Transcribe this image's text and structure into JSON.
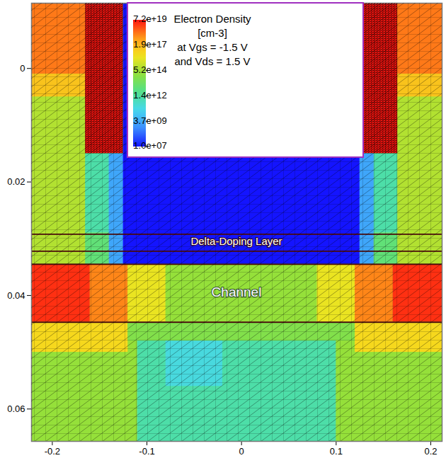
{
  "chart_data": {
    "type": "heatmap",
    "xlim": [
      -0.222,
      0.212
    ],
    "ylim": [
      -0.0115,
      0.0657
    ],
    "xticks": [
      -0.2,
      -0.1,
      0,
      0.1,
      0.2
    ],
    "yticks": [
      0,
      0.02,
      0.04,
      0.06
    ],
    "tick_labels": true,
    "colorbar": {
      "title": "Electron Density",
      "label_lines": [
        "[cm-3]",
        "at Vgs = -1.5 V",
        "and Vds = 1.5 V"
      ],
      "range": [
        10000000,
        72000000000000000000
      ],
      "log": true,
      "ticks": [
        {
          "value": 72000000000000000000,
          "label": "7.2e+19"
        },
        {
          "value": 190000000000000000,
          "label": "1.9e+17"
        },
        {
          "value": 520000000000000,
          "label": "5.2e+14"
        },
        {
          "value": 1400000000000,
          "label": "1.4e+12"
        },
        {
          "value": 3700000000,
          "label": "3.7e+09"
        },
        {
          "value": 10000000,
          "label": "1.0e+07"
        }
      ]
    },
    "annotations": [
      "Delta-Doping Layer",
      "Channel"
    ],
    "interfaces": [
      0.0292,
      0.0322,
      0.0345,
      0.0447
    ],
    "cells": [
      {
        "x": [
          -0.222,
          0.212
        ],
        "y": [
          -0.0115,
          0.0447
        ],
        "value": 1000000000000000.0
      },
      {
        "x": [
          -0.222,
          0.212
        ],
        "y": [
          0.0447,
          0.0657
        ],
        "value": 300000000000000.0
      },
      {
        "x": [
          -0.222,
          -0.165
        ],
        "y": [
          -0.0115,
          0.001
        ],
        "value": 3e+18
      },
      {
        "x": [
          -0.222,
          -0.165
        ],
        "y": [
          0.001,
          0.005
        ],
        "value": 1e+17
      },
      {
        "x": [
          0.165,
          0.212
        ],
        "y": [
          -0.0115,
          0.001
        ],
        "value": 3e+18
      },
      {
        "x": [
          0.165,
          0.212
        ],
        "y": [
          0.001,
          0.005
        ],
        "value": 1e+17
      },
      {
        "x": [
          -0.165,
          -0.125
        ],
        "y": [
          -0.0115,
          0.015
        ],
        "value": 7e+19
      },
      {
        "x": [
          0.125,
          0.165
        ],
        "y": [
          -0.0115,
          0.015
        ],
        "value": 7e+19
      },
      {
        "x": [
          -0.165,
          -0.13
        ],
        "y": [
          0.015,
          0.029
        ],
        "value": 1000000000000.0
      },
      {
        "x": [
          0.13,
          0.165
        ],
        "y": [
          0.015,
          0.029
        ],
        "value": 1000000000000.0
      },
      {
        "x": [
          -0.165,
          -0.14
        ],
        "y": [
          0.029,
          0.0345
        ],
        "value": 10000000000000.0
      },
      {
        "x": [
          0.14,
          0.165
        ],
        "y": [
          0.029,
          0.0345
        ],
        "value": 10000000000000.0
      },
      {
        "x": [
          -0.14,
          0.14
        ],
        "y": [
          0.015,
          0.0345
        ],
        "value": 3000000000.0
      },
      {
        "x": [
          -0.125,
          0.125
        ],
        "y": [
          -0.0115,
          0.0345
        ],
        "value": 10000000.0
      },
      {
        "x": [
          -0.222,
          -0.16
        ],
        "y": [
          0.0345,
          0.0447
        ],
        "value": 3e+19
      },
      {
        "x": [
          -0.16,
          -0.12
        ],
        "y": [
          0.0345,
          0.0447
        ],
        "value": 2e+18
      },
      {
        "x": [
          -0.12,
          -0.08
        ],
        "y": [
          0.0345,
          0.0447
        ],
        "value": 1e+16
      },
      {
        "x": [
          -0.08,
          0.08
        ],
        "y": [
          0.0345,
          0.0447
        ],
        "value": 300000000000000.0
      },
      {
        "x": [
          0.08,
          0.12
        ],
        "y": [
          0.0345,
          0.0447
        ],
        "value": 1e+16
      },
      {
        "x": [
          0.12,
          0.16
        ],
        "y": [
          0.0345,
          0.0447
        ],
        "value": 2e+18
      },
      {
        "x": [
          0.16,
          0.212
        ],
        "y": [
          0.0345,
          0.0447
        ],
        "value": 3e+19
      },
      {
        "x": [
          -0.222,
          -0.12
        ],
        "y": [
          0.0447,
          0.05
        ],
        "value": 3e+16
      },
      {
        "x": [
          0.12,
          0.212
        ],
        "y": [
          0.0447,
          0.05
        ],
        "value": 3e+16
      },
      {
        "x": [
          -0.11,
          0.1
        ],
        "y": [
          0.048,
          0.0657
        ],
        "value": 1000000000000.0
      },
      {
        "x": [
          -0.08,
          -0.02
        ],
        "y": [
          0.048,
          0.056
        ],
        "value": 100000000000.0
      },
      {
        "x": [
          -0.12,
          0.12
        ],
        "y": [
          0.0447,
          0.048
        ],
        "value": 100000000000000.0
      }
    ]
  }
}
